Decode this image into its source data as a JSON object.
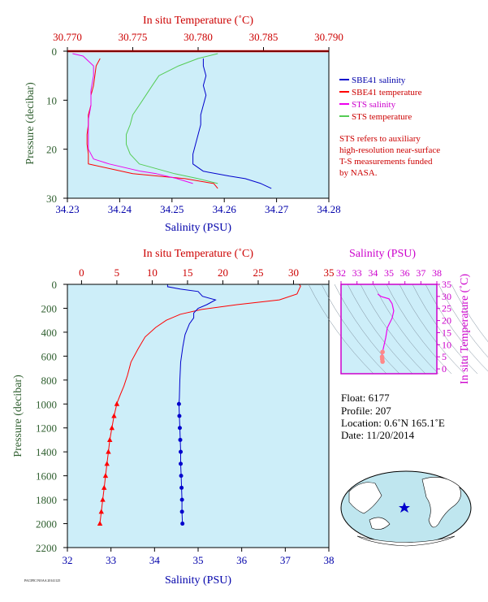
{
  "colors": {
    "plot_bg": "#cdeef9",
    "salinity": "#0000cc",
    "temperature": "#ff0000",
    "sts_salinity": "#ee00ee",
    "sts_temperature": "#55cc55",
    "sts_temp_light": "#ff8888",
    "axis_red": "#cc0000",
    "axis_blue": "#0000aa",
    "axis_green": "#2e5e2e",
    "axis_magenta": "#cc00cc"
  },
  "top_panel": {
    "title_top": "In situ Temperature (˚C)",
    "xlabel_bottom": "Salinity (PSU)",
    "ylabel": "Pressure (decibar)",
    "temp_ticks": [
      "30.770",
      "30.775",
      "30.780",
      "30.785",
      "30.790"
    ],
    "sal_ticks": [
      "34.23",
      "34.24",
      "34.25",
      "34.26",
      "34.27",
      "34.28"
    ],
    "pres_ticks": [
      "0",
      "10",
      "20",
      "30"
    ],
    "legend": [
      {
        "label": "SBE41 salinity",
        "color": "#0000cc"
      },
      {
        "label": "SBE41 temperature",
        "color": "#ff0000"
      },
      {
        "label": "STS salinity",
        "color": "#ee00ee"
      },
      {
        "label": "STS temperature",
        "color": "#55cc55"
      }
    ],
    "note": [
      "STS refers to auxiliary",
      "high-resolution near-surface",
      "T-S measurements funded",
      "by NASA."
    ]
  },
  "bottom_panel": {
    "title_top": "In situ Temperature (˚C)",
    "xlabel_bottom": "Salinity (PSU)",
    "ylabel": "Pressure (decibar)",
    "temp_ticks": [
      "0",
      "5",
      "10",
      "15",
      "20",
      "25",
      "30",
      "35"
    ],
    "sal_ticks": [
      "32",
      "33",
      "34",
      "35",
      "36",
      "37",
      "38"
    ],
    "pres_ticks": [
      "0",
      "200",
      "400",
      "600",
      "800",
      "1000",
      "1200",
      "1400",
      "1600",
      "1800",
      "2000",
      "2200"
    ]
  },
  "ts_panel": {
    "title_top": "Salinity (PSU)",
    "ylabel": "In situ Temperature (˚C)",
    "sal_ticks": [
      "32",
      "33",
      "34",
      "35",
      "36",
      "37",
      "38"
    ],
    "temp_ticks": [
      "0",
      "5",
      "10",
      "15",
      "20",
      "25",
      "30",
      "35"
    ]
  },
  "info": {
    "float": "Float:  6177",
    "profile": "Profile:  207",
    "location": "Location:  0.6˚N  165.1˚E",
    "date": "Date:  11/20/2014"
  },
  "footer_tiny": "PACIFIC/NOAA  20141125",
  "chart_data": [
    {
      "type": "line",
      "title": "",
      "top_axis_label": "In situ Temperature (˚C)",
      "xlabel": "Salinity (PSU)",
      "ylabel": "Pressure (decibar)",
      "temp_range": [
        30.77,
        30.79
      ],
      "sal_range": [
        34.23,
        34.28
      ],
      "ylim": [
        0,
        30
      ],
      "y_inverted": true,
      "series": [
        {
          "name": "SBE41 salinity",
          "axis": "salinity",
          "points": [
            [
              34.256,
              1.5
            ],
            [
              34.256,
              3
            ],
            [
              34.2565,
              5
            ],
            [
              34.256,
              7
            ],
            [
              34.2565,
              9
            ],
            [
              34.256,
              11
            ],
            [
              34.2555,
              13
            ],
            [
              34.2555,
              15
            ],
            [
              34.255,
              17
            ],
            [
              34.2545,
              19
            ],
            [
              34.254,
              21
            ],
            [
              34.254,
              23
            ],
            [
              34.256,
              24.5
            ],
            [
              34.261,
              25.5
            ],
            [
              34.264,
              26
            ],
            [
              34.267,
              27
            ],
            [
              34.269,
              28
            ]
          ]
        },
        {
          "name": "SBE41 temperature",
          "axis": "temperature",
          "points": [
            [
              30.7725,
              1.5
            ],
            [
              30.7722,
              3
            ],
            [
              30.7721,
              5
            ],
            [
              30.772,
              7
            ],
            [
              30.7718,
              9
            ],
            [
              30.7718,
              11
            ],
            [
              30.7716,
              13
            ],
            [
              30.7716,
              15
            ],
            [
              30.7715,
              17
            ],
            [
              30.7715,
              19
            ],
            [
              30.7716,
              21
            ],
            [
              30.7716,
              23
            ],
            [
              30.775,
              25
            ],
            [
              30.779,
              26
            ],
            [
              30.7812,
              27
            ],
            [
              30.7815,
              28
            ]
          ]
        },
        {
          "name": "STS salinity",
          "axis": "salinity",
          "points": [
            [
              34.231,
              0.5
            ],
            [
              34.233,
              1
            ],
            [
              34.234,
              2
            ],
            [
              34.235,
              3
            ],
            [
              34.235,
              5
            ],
            [
              34.2345,
              8
            ],
            [
              34.2345,
              11
            ],
            [
              34.234,
              14
            ],
            [
              34.234,
              17
            ],
            [
              34.234,
              20
            ],
            [
              34.235,
              22
            ],
            [
              34.238,
              23
            ],
            [
              34.244,
              24.5
            ],
            [
              34.247,
              25
            ],
            [
              34.251,
              26
            ],
            [
              34.254,
              27
            ]
          ]
        },
        {
          "name": "STS temperature",
          "axis": "temperature",
          "points": [
            [
              30.7815,
              0.5
            ],
            [
              30.78,
              1.5
            ],
            [
              30.7785,
              3
            ],
            [
              30.777,
              5
            ],
            [
              30.7765,
              7
            ],
            [
              30.776,
              9
            ],
            [
              30.7755,
              11
            ],
            [
              30.775,
              13
            ],
            [
              30.7748,
              15
            ],
            [
              30.7745,
              17
            ],
            [
              30.7745,
              19
            ],
            [
              30.7748,
              21
            ],
            [
              30.7755,
              23
            ],
            [
              30.7782,
              25
            ],
            [
              30.78,
              26
            ],
            [
              30.7815,
              27
            ]
          ]
        }
      ]
    },
    {
      "type": "line",
      "title": "",
      "top_axis_label": "In situ Temperature (˚C)",
      "xlabel": "Salinity (PSU)",
      "ylabel": "Pressure (decibar)",
      "temp_range": [
        -2,
        35
      ],
      "sal_range": [
        32,
        38
      ],
      "ylim": [
        0,
        2200
      ],
      "y_inverted": true,
      "series": [
        {
          "name": "Temperature",
          "axis": "temperature",
          "points": [
            [
              30.8,
              0
            ],
            [
              31,
              15
            ],
            [
              30.8,
              40
            ],
            [
              30.5,
              80
            ],
            [
              28,
              130
            ],
            [
              22,
              170
            ],
            [
              17,
              210
            ],
            [
              14,
              250
            ],
            [
              12,
              300
            ],
            [
              10.5,
              360
            ],
            [
              9,
              440
            ],
            [
              8,
              540
            ],
            [
              7,
              650
            ],
            [
              6.5,
              760
            ],
            [
              6,
              850
            ],
            [
              5.5,
              920
            ],
            [
              5.1,
              980
            ]
          ],
          "markers": [
            [
              5.0,
              1000
            ],
            [
              4.6,
              1100
            ],
            [
              4.3,
              1200
            ],
            [
              4.0,
              1300
            ],
            [
              3.8,
              1400
            ],
            [
              3.6,
              1500
            ],
            [
              3.4,
              1600
            ],
            [
              3.2,
              1700
            ],
            [
              3.0,
              1800
            ],
            [
              2.8,
              1900
            ],
            [
              2.6,
              2000
            ]
          ]
        },
        {
          "name": "Salinity",
          "axis": "salinity",
          "points": [
            [
              34.3,
              0
            ],
            [
              34.3,
              20
            ],
            [
              34.6,
              40
            ],
            [
              35.0,
              60
            ],
            [
              35.1,
              100
            ],
            [
              35.4,
              130
            ],
            [
              35.2,
              170
            ],
            [
              35.0,
              200
            ],
            [
              34.9,
              240
            ],
            [
              34.9,
              280
            ],
            [
              34.8,
              330
            ],
            [
              34.7,
              420
            ],
            [
              34.65,
              520
            ],
            [
              34.6,
              650
            ],
            [
              34.58,
              800
            ],
            [
              34.57,
              950
            ]
          ],
          "markers": [
            [
              34.56,
              1000
            ],
            [
              34.57,
              1100
            ],
            [
              34.58,
              1200
            ],
            [
              34.59,
              1300
            ],
            [
              34.6,
              1400
            ],
            [
              34.6,
              1500
            ],
            [
              34.61,
              1600
            ],
            [
              34.62,
              1700
            ],
            [
              34.63,
              1800
            ],
            [
              34.63,
              1900
            ],
            [
              34.64,
              2000
            ]
          ]
        }
      ]
    },
    {
      "type": "scatter",
      "title": "",
      "xlabel": "Salinity (PSU)",
      "ylabel": "In situ Temperature (˚C)",
      "xlim": [
        32,
        38
      ],
      "ylim": [
        -2,
        35
      ],
      "grid": false,
      "series": [
        {
          "name": "T-S",
          "points": [
            [
              34.3,
              31
            ],
            [
              34.5,
              30
            ],
            [
              35.0,
              29
            ],
            [
              35.2,
              27
            ],
            [
              35.3,
              24
            ],
            [
              35.2,
              21
            ],
            [
              34.9,
              17
            ],
            [
              34.8,
              13
            ],
            [
              34.7,
              10
            ],
            [
              34.6,
              7
            ],
            [
              34.57,
              5
            ],
            [
              34.58,
              4
            ],
            [
              34.6,
              3
            ]
          ]
        }
      ]
    }
  ]
}
